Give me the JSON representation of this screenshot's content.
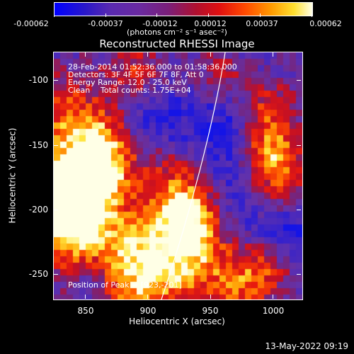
{
  "colorbar": {
    "ticks": [
      "-0.00062",
      "-0.00037",
      "-0.00012",
      "0.00012",
      "0.00037",
      "0.00062"
    ],
    "units": "(photons cm⁻² s⁻¹ asec⁻²)"
  },
  "image": {
    "title": "Reconstructed RHESSI Image",
    "annotation": {
      "time": "28-Feb-2014 01:52:36.000 to 01:58:36.000",
      "detectors": "Detectors: 3F 4F 5F 6F 7F 8F, Att 0",
      "energy": "Energy Range: 12.0 - 25.0 keV",
      "clean": "Clean",
      "counts": "Total counts: 1.75E+04",
      "peak": "Position of Peak = [923,-201]"
    },
    "xaxis": {
      "label": "Heliocentric X (arcsec)",
      "ticks": [
        "850",
        "900",
        "950",
        "1000"
      ]
    },
    "yaxis": {
      "label": "Heliocentric Y (arcsec)",
      "ticks": [
        "-100",
        "-150",
        "-200",
        "-250"
      ]
    },
    "colors": {
      "min": "#0000ff",
      "zero": "#6a2aa0",
      "mid": "#e01010",
      "max": "#ffffe8"
    }
  },
  "footer": {
    "date": "13-May-2022 09:19"
  }
}
